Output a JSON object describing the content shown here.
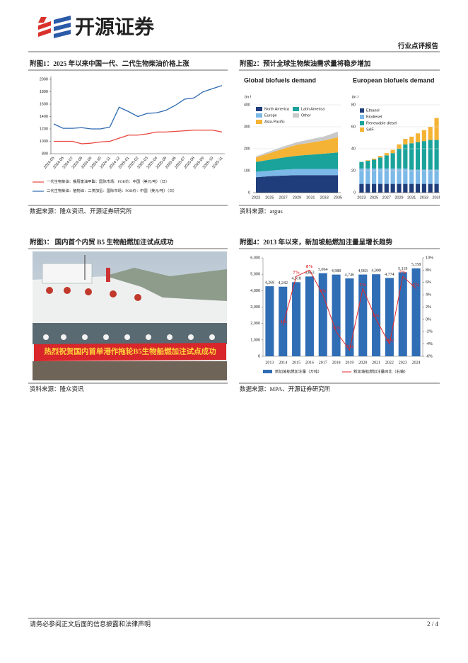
{
  "header": {
    "brand": "开源证券",
    "report_type": "行业点评报告"
  },
  "figures": [
    {
      "caption": "附图1：2025 年以来中国一代、二代生物柴油价格上涨",
      "source": "数据来源：隆众资讯、开源证券研究所"
    },
    {
      "caption": "附图2：预计全球生物柴油需求量将稳步增加",
      "source": "资料来源：argus"
    },
    {
      "caption": "附图3： 国内首个内贸 B5 生物船燃加注试点成功",
      "source": "资料来源：隆众资讯"
    },
    {
      "caption": "附图4：2013 年以来，新加坡船燃加注量呈增长趋势",
      "source": "数据来源：MPA、开源证券研究所"
    }
  ],
  "photo": {
    "banner": "热烈祝贺国内首单港作拖轮B5生物船燃加注试点成功"
  },
  "chart_data": [
    {
      "type": "line",
      "categories": [
        "2024-05",
        "2024-06",
        "2024-07",
        "2024-08",
        "2024-09",
        "2024-10",
        "2024-11",
        "2024-12",
        "2025-01",
        "2025-02",
        "2025-03",
        "2025-04",
        "2025-05",
        "2025-06",
        "2025-07",
        "2025-08",
        "2025-09",
        "2025-10",
        "2025-11"
      ],
      "series": [
        {
          "name": "一代生物柴油：餐厨废油甲酯：国际市场：FOB价：中国（美元/吨）（日）",
          "color": "#e8453c",
          "values": [
            1000,
            1000,
            1000,
            960,
            970,
            990,
            1000,
            1050,
            1100,
            1100,
            1120,
            1150,
            1150,
            1160,
            1170,
            1180,
            1180,
            1180,
            1150
          ]
        },
        {
          "name": "二代生物柴油：植物油：二类加氢：国际市场：FOB价：中国（美元/吨）（日）",
          "color": "#2e6bb0",
          "values": [
            1280,
            1210,
            1210,
            1220,
            1200,
            1200,
            1230,
            1550,
            1480,
            1400,
            1450,
            1460,
            1500,
            1580,
            1680,
            1700,
            1800,
            1850,
            1900
          ]
        }
      ],
      "ylim": [
        800,
        2000
      ],
      "yticks": [
        800,
        1000,
        1200,
        1400,
        1600,
        1800,
        2000
      ],
      "grid": false
    },
    {
      "type": "area",
      "title": "Global biofuels demand",
      "y_label": "bn l",
      "categories": [
        "2023",
        "2025",
        "2027",
        "2029",
        "2031",
        "2033",
        "2035"
      ],
      "series": [
        {
          "name": "North America",
          "color": "#1f3d7a",
          "values": [
            70,
            75,
            78,
            80,
            80,
            80,
            80
          ]
        },
        {
          "name": "Europe",
          "color": "#7cb9e8",
          "values": [
            25,
            25,
            27,
            28,
            28,
            28,
            28
          ]
        },
        {
          "name": "Latin America",
          "color": "#1aa39a",
          "values": [
            45,
            50,
            55,
            60,
            65,
            70,
            75
          ]
        },
        {
          "name": "Asia-Pacific",
          "color": "#f5b335",
          "values": [
            20,
            30,
            40,
            50,
            55,
            60,
            70
          ]
        },
        {
          "name": "Other",
          "color": "#c9c9c9",
          "values": [
            5,
            8,
            10,
            12,
            15,
            18,
            25
          ]
        }
      ],
      "ylim": [
        0,
        400
      ],
      "yticks": [
        0,
        100,
        200,
        300,
        400
      ],
      "grid": true
    },
    {
      "type": "bar",
      "title": "European biofuels demand",
      "y_label": "bn l",
      "categories": [
        "2023",
        null,
        "2025",
        null,
        "2027",
        null,
        "2029",
        null,
        "2031",
        null,
        "2033",
        null,
        "2035"
      ],
      "series": [
        {
          "name": "Ethanol",
          "color": "#1f3d7a",
          "values": [
            8,
            8,
            8,
            8,
            8,
            8,
            8,
            8,
            8,
            8,
            8,
            8,
            8
          ]
        },
        {
          "name": "Biodiesel",
          "color": "#7cb9e8",
          "values": [
            14,
            14,
            14,
            14,
            14,
            14,
            14,
            14,
            13,
            13,
            13,
            13,
            13
          ]
        },
        {
          "name": "Renewable diesel",
          "color": "#1aa39a",
          "values": [
            6,
            7,
            8,
            10,
            12,
            14,
            18,
            22,
            24,
            25,
            26,
            27,
            27
          ]
        },
        {
          "name": "SAF",
          "color": "#f5b335",
          "values": [
            0,
            0.5,
            1,
            1.5,
            2,
            3,
            4,
            5,
            6,
            8,
            10,
            12,
            20
          ]
        }
      ],
      "ylim": [
        0,
        80
      ],
      "yticks": [
        0,
        20,
        40,
        60,
        80
      ],
      "grid": true
    },
    {
      "type": "combo",
      "categories": [
        "2013",
        "2014",
        "2015",
        "2016",
        "2017",
        "2018",
        "2019",
        "2020",
        "2021",
        "2022",
        "2023",
        "2024"
      ],
      "series": [
        {
          "name": "新加坡船燃加注量（万吨）",
          "color": "#2f6db5",
          "values": [
            4268,
            4242,
            4518,
            4863,
            5064,
            4980,
            4746,
            4983,
            4999,
            4774,
            5119,
            5358
          ],
          "value_labels": [
            "4,268",
            "4,242",
            "4,518",
            "4,863",
            "5,064",
            "4,980",
            "4,746",
            "4,983",
            "4,999",
            "4,774",
            "5,119",
            "5,358"
          ]
        },
        {
          "name": "新加坡船燃加注量同比（右轴）",
          "color": "#e0262b",
          "axis": "y2",
          "values": [
            null,
            -1,
            7,
            8,
            4,
            -2,
            -5,
            5,
            0,
            -4,
            7,
            5
          ],
          "value_labels": [
            null,
            "-1%",
            "7%",
            "8%",
            "4%",
            "-2%",
            "-5%",
            "5%",
            "0%",
            "-4%",
            "7%",
            "5%"
          ]
        }
      ],
      "ylim": [
        0,
        6000
      ],
      "yticks": [
        0,
        {
          "value": 1000,
          "label": "1,000"
        },
        {
          "value": 2000,
          "label": "2,000"
        },
        {
          "value": 3000,
          "label": "3,000"
        },
        {
          "value": 4000,
          "label": "4,000"
        },
        {
          "value": 5000,
          "label": "5,000"
        },
        {
          "value": 6000,
          "label": "6,000"
        }
      ],
      "y2lim": [
        -6,
        10
      ],
      "y2ticks": [
        {
          "value": -6,
          "label": "-6%"
        },
        {
          "value": -4,
          "label": "-4%"
        },
        {
          "value": -2,
          "label": "-2%"
        },
        {
          "value": 0,
          "label": "0%"
        },
        {
          "value": 2,
          "label": "2%"
        },
        {
          "value": 4,
          "label": "4%"
        },
        {
          "value": 6,
          "label": "6%"
        },
        {
          "value": 8,
          "label": "8%"
        },
        {
          "value": 10,
          "label": "10%"
        }
      ],
      "grid": false
    }
  ],
  "footer": {
    "disclaimer": "请务必参阅正文后面的信息披露和法律声明",
    "page": "2 / 4"
  }
}
